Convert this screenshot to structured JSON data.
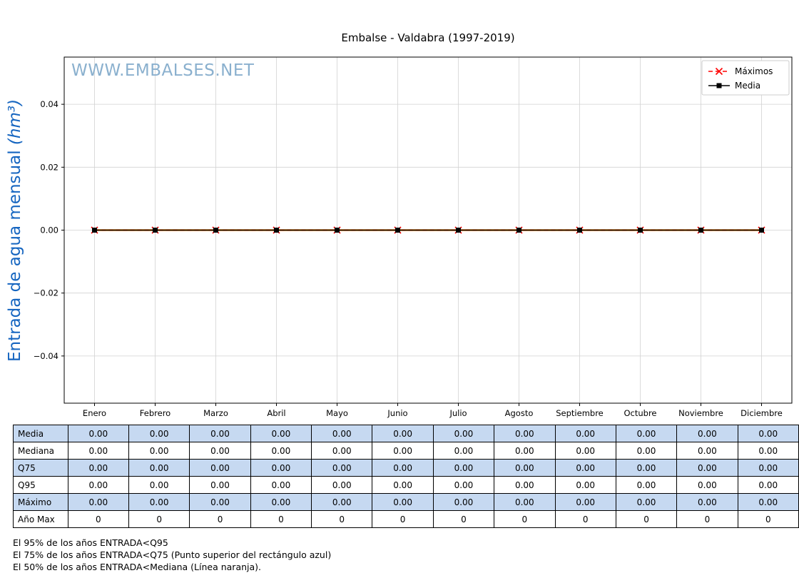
{
  "title": "Embalse - Valdabra (1997-2019)",
  "watermark": "WWW.EMBALSES.NET",
  "ylabel_parts": {
    "plain": "Entrada de agua mensual ",
    "math": "(hm³)"
  },
  "colors": {
    "maximos": "#ff0000",
    "media": "#000000",
    "mediana": "#ff8c00",
    "grid": "#d2d2d2",
    "axis": "#000000",
    "ylabel_blue": "#1565c0",
    "watermark_blue": "#8ab0ce",
    "table_highlight": "#c6d9f1",
    "legend_border": "#cccccc"
  },
  "chart_data": {
    "type": "line",
    "title": "Embalse - Valdabra (1997-2019)",
    "xlabel": "",
    "ylabel": "Entrada de agua mensual (hm³)",
    "categories": [
      "Enero",
      "Febrero",
      "Marzo",
      "Abril",
      "Mayo",
      "Junio",
      "Julio",
      "Agosto",
      "Septiembre",
      "Octubre",
      "Noviembre",
      "Diciembre"
    ],
    "series": [
      {
        "name": "Máximos",
        "color": "#ff0000",
        "marker": "x",
        "line": "dashed",
        "values": [
          0,
          0,
          0,
          0,
          0,
          0,
          0,
          0,
          0,
          0,
          0,
          0
        ]
      },
      {
        "name": "Media",
        "color": "#000000",
        "marker": "square",
        "line": "solid",
        "values": [
          0,
          0,
          0,
          0,
          0,
          0,
          0,
          0,
          0,
          0,
          0,
          0
        ]
      },
      {
        "name": "Mediana",
        "color": "#ff8c00",
        "marker": "none",
        "line": "solid",
        "values": [
          0,
          0,
          0,
          0,
          0,
          0,
          0,
          0,
          0,
          0,
          0,
          0
        ]
      }
    ],
    "draw_order": [
      "Mediana",
      "Máximos",
      "Media"
    ],
    "legend_entries": [
      "Máximos",
      "Media"
    ],
    "legend_position": "upper right",
    "yticks": [
      -0.04,
      -0.02,
      0,
      0.02,
      0.04
    ],
    "ylim": [
      -0.055,
      0.055
    ],
    "grid": true
  },
  "table": {
    "columns": [
      "Enero",
      "Febrero",
      "Marzo",
      "Abril",
      "Mayo",
      "Junio",
      "Julio",
      "Agosto",
      "Septiembre",
      "Octubre",
      "Noviembre",
      "Diciembre"
    ],
    "row_headers": [
      "Media",
      "Mediana",
      "Q75",
      "Q95",
      "Máximo",
      "Año Max"
    ],
    "highlight_rows": [
      0,
      2,
      4
    ],
    "rows": [
      [
        "0.00",
        "0.00",
        "0.00",
        "0.00",
        "0.00",
        "0.00",
        "0.00",
        "0.00",
        "0.00",
        "0.00",
        "0.00",
        "0.00"
      ],
      [
        "0.00",
        "0.00",
        "0.00",
        "0.00",
        "0.00",
        "0.00",
        "0.00",
        "0.00",
        "0.00",
        "0.00",
        "0.00",
        "0.00"
      ],
      [
        "0.00",
        "0.00",
        "0.00",
        "0.00",
        "0.00",
        "0.00",
        "0.00",
        "0.00",
        "0.00",
        "0.00",
        "0.00",
        "0.00"
      ],
      [
        "0.00",
        "0.00",
        "0.00",
        "0.00",
        "0.00",
        "0.00",
        "0.00",
        "0.00",
        "0.00",
        "0.00",
        "0.00",
        "0.00"
      ],
      [
        "0.00",
        "0.00",
        "0.00",
        "0.00",
        "0.00",
        "0.00",
        "0.00",
        "0.00",
        "0.00",
        "0.00",
        "0.00",
        "0.00"
      ],
      [
        "0",
        "0",
        "0",
        "0",
        "0",
        "0",
        "0",
        "0",
        "0",
        "0",
        "0",
        "0"
      ]
    ]
  },
  "footnotes": [
    "El 95% de los años ENTRADA<Q95",
    "El 75% de los años ENTRADA<Q75 (Punto superior del rectángulo azul)",
    "El 50% de los años ENTRADA<Mediana (Línea naranja)."
  ]
}
